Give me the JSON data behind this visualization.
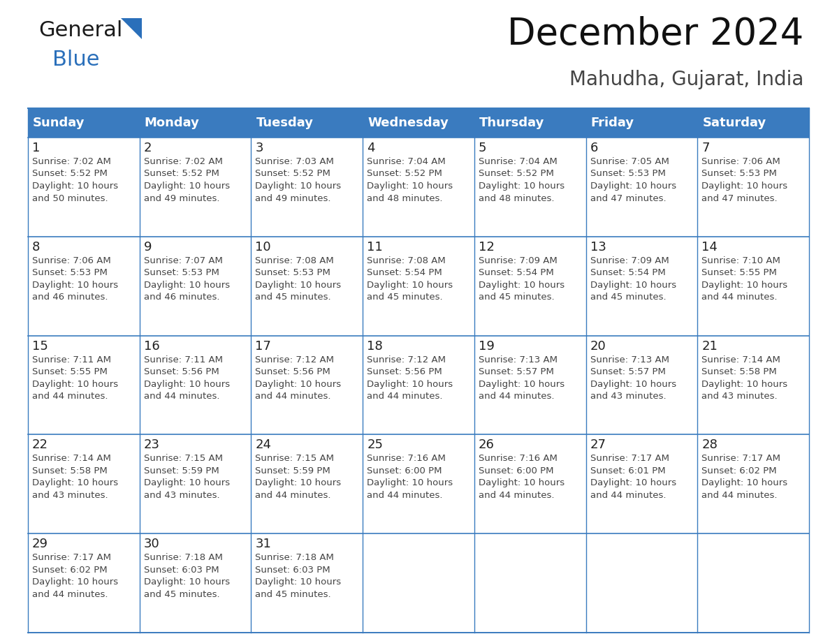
{
  "title": "December 2024",
  "subtitle": "Mahudha, Gujarat, India",
  "header_color": "#3a7bbf",
  "header_text_color": "#ffffff",
  "border_color": "#3a7bbf",
  "cell_bg_color": "#ffffff",
  "text_color": "#333333",
  "days_of_week": [
    "Sunday",
    "Monday",
    "Tuesday",
    "Wednesday",
    "Thursday",
    "Friday",
    "Saturday"
  ],
  "calendar_data": [
    [
      {
        "day": 1,
        "sunrise": "7:02 AM",
        "sunset": "5:52 PM",
        "daylight_hours": 10,
        "daylight_minutes": 50
      },
      {
        "day": 2,
        "sunrise": "7:02 AM",
        "sunset": "5:52 PM",
        "daylight_hours": 10,
        "daylight_minutes": 49
      },
      {
        "day": 3,
        "sunrise": "7:03 AM",
        "sunset": "5:52 PM",
        "daylight_hours": 10,
        "daylight_minutes": 49
      },
      {
        "day": 4,
        "sunrise": "7:04 AM",
        "sunset": "5:52 PM",
        "daylight_hours": 10,
        "daylight_minutes": 48
      },
      {
        "day": 5,
        "sunrise": "7:04 AM",
        "sunset": "5:52 PM",
        "daylight_hours": 10,
        "daylight_minutes": 48
      },
      {
        "day": 6,
        "sunrise": "7:05 AM",
        "sunset": "5:53 PM",
        "daylight_hours": 10,
        "daylight_minutes": 47
      },
      {
        "day": 7,
        "sunrise": "7:06 AM",
        "sunset": "5:53 PM",
        "daylight_hours": 10,
        "daylight_minutes": 47
      }
    ],
    [
      {
        "day": 8,
        "sunrise": "7:06 AM",
        "sunset": "5:53 PM",
        "daylight_hours": 10,
        "daylight_minutes": 46
      },
      {
        "day": 9,
        "sunrise": "7:07 AM",
        "sunset": "5:53 PM",
        "daylight_hours": 10,
        "daylight_minutes": 46
      },
      {
        "day": 10,
        "sunrise": "7:08 AM",
        "sunset": "5:53 PM",
        "daylight_hours": 10,
        "daylight_minutes": 45
      },
      {
        "day": 11,
        "sunrise": "7:08 AM",
        "sunset": "5:54 PM",
        "daylight_hours": 10,
        "daylight_minutes": 45
      },
      {
        "day": 12,
        "sunrise": "7:09 AM",
        "sunset": "5:54 PM",
        "daylight_hours": 10,
        "daylight_minutes": 45
      },
      {
        "day": 13,
        "sunrise": "7:09 AM",
        "sunset": "5:54 PM",
        "daylight_hours": 10,
        "daylight_minutes": 45
      },
      {
        "day": 14,
        "sunrise": "7:10 AM",
        "sunset": "5:55 PM",
        "daylight_hours": 10,
        "daylight_minutes": 44
      }
    ],
    [
      {
        "day": 15,
        "sunrise": "7:11 AM",
        "sunset": "5:55 PM",
        "daylight_hours": 10,
        "daylight_minutes": 44
      },
      {
        "day": 16,
        "sunrise": "7:11 AM",
        "sunset": "5:56 PM",
        "daylight_hours": 10,
        "daylight_minutes": 44
      },
      {
        "day": 17,
        "sunrise": "7:12 AM",
        "sunset": "5:56 PM",
        "daylight_hours": 10,
        "daylight_minutes": 44
      },
      {
        "day": 18,
        "sunrise": "7:12 AM",
        "sunset": "5:56 PM",
        "daylight_hours": 10,
        "daylight_minutes": 44
      },
      {
        "day": 19,
        "sunrise": "7:13 AM",
        "sunset": "5:57 PM",
        "daylight_hours": 10,
        "daylight_minutes": 44
      },
      {
        "day": 20,
        "sunrise": "7:13 AM",
        "sunset": "5:57 PM",
        "daylight_hours": 10,
        "daylight_minutes": 43
      },
      {
        "day": 21,
        "sunrise": "7:14 AM",
        "sunset": "5:58 PM",
        "daylight_hours": 10,
        "daylight_minutes": 43
      }
    ],
    [
      {
        "day": 22,
        "sunrise": "7:14 AM",
        "sunset": "5:58 PM",
        "daylight_hours": 10,
        "daylight_minutes": 43
      },
      {
        "day": 23,
        "sunrise": "7:15 AM",
        "sunset": "5:59 PM",
        "daylight_hours": 10,
        "daylight_minutes": 43
      },
      {
        "day": 24,
        "sunrise": "7:15 AM",
        "sunset": "5:59 PM",
        "daylight_hours": 10,
        "daylight_minutes": 44
      },
      {
        "day": 25,
        "sunrise": "7:16 AM",
        "sunset": "6:00 PM",
        "daylight_hours": 10,
        "daylight_minutes": 44
      },
      {
        "day": 26,
        "sunrise": "7:16 AM",
        "sunset": "6:00 PM",
        "daylight_hours": 10,
        "daylight_minutes": 44
      },
      {
        "day": 27,
        "sunrise": "7:17 AM",
        "sunset": "6:01 PM",
        "daylight_hours": 10,
        "daylight_minutes": 44
      },
      {
        "day": 28,
        "sunrise": "7:17 AM",
        "sunset": "6:02 PM",
        "daylight_hours": 10,
        "daylight_minutes": 44
      }
    ],
    [
      {
        "day": 29,
        "sunrise": "7:17 AM",
        "sunset": "6:02 PM",
        "daylight_hours": 10,
        "daylight_minutes": 44
      },
      {
        "day": 30,
        "sunrise": "7:18 AM",
        "sunset": "6:03 PM",
        "daylight_hours": 10,
        "daylight_minutes": 45
      },
      {
        "day": 31,
        "sunrise": "7:18 AM",
        "sunset": "6:03 PM",
        "daylight_hours": 10,
        "daylight_minutes": 45
      },
      null,
      null,
      null,
      null
    ]
  ],
  "logo_general_color": "#1a1a1a",
  "logo_blue_color": "#2a6fba",
  "title_fontsize": 38,
  "subtitle_fontsize": 20,
  "header_fontsize": 13,
  "day_num_fontsize": 13,
  "cell_text_fontsize": 9.5
}
